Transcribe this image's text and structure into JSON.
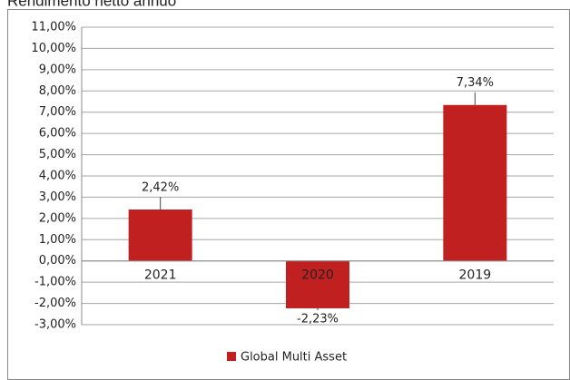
{
  "chart_data": {
    "type": "bar",
    "title": "Rendimento netto annuo",
    "categories": [
      "2021",
      "2020",
      "2019"
    ],
    "series": [
      {
        "name": "Global Multi Asset",
        "color": "#c0201f",
        "values": [
          2.42,
          -2.23,
          7.34
        ],
        "value_labels": [
          "2,42%",
          "-2,23%",
          "7,34%"
        ]
      }
    ],
    "ylim": [
      -3,
      11
    ],
    "yticks": [
      {
        "value": -3,
        "label": "-3,00%"
      },
      {
        "value": -2,
        "label": "-2,00%"
      },
      {
        "value": -1,
        "label": "-1,00%"
      },
      {
        "value": 0,
        "label": "0,00%"
      },
      {
        "value": 1,
        "label": "1,00%"
      },
      {
        "value": 2,
        "label": "2,00%"
      },
      {
        "value": 3,
        "label": "3,00%"
      },
      {
        "value": 4,
        "label": "4,00%"
      },
      {
        "value": 5,
        "label": "5,00%"
      },
      {
        "value": 6,
        "label": "6,00%"
      },
      {
        "value": 7,
        "label": "7,00%"
      },
      {
        "value": 8,
        "label": "8,00%"
      },
      {
        "value": 9,
        "label": "9,00%"
      },
      {
        "value": 10,
        "label": "10,00%"
      },
      {
        "value": 11,
        "label": "11,00%"
      }
    ],
    "grid": true,
    "legend": "bottom"
  }
}
